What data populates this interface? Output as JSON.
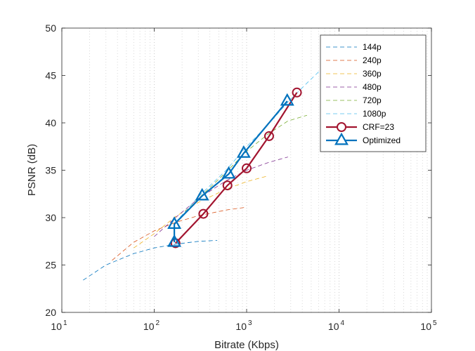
{
  "chart_data": {
    "type": "line",
    "xlabel": "Bitrate (Kbps)",
    "ylabel": "PSNR (dB)",
    "x_scale": "log",
    "xlim": [
      10,
      100000
    ],
    "ylim": [
      20,
      50
    ],
    "x_ticks": [
      {
        "value": 10,
        "base": "10",
        "exp": "1"
      },
      {
        "value": 100,
        "base": "10",
        "exp": "2"
      },
      {
        "value": 1000,
        "base": "10",
        "exp": "3"
      },
      {
        "value": 10000,
        "base": "10",
        "exp": "4"
      },
      {
        "value": 100000,
        "base": "10",
        "exp": "5"
      }
    ],
    "y_ticks": [
      "20",
      "25",
      "30",
      "35",
      "40",
      "45",
      "50"
    ],
    "grid": "x-minor-dotted",
    "legend_position": "top-right",
    "series": [
      {
        "name": "144p",
        "style": "dashed",
        "color": "#0072BD",
        "x": [
          17,
          30,
          60,
          100,
          170,
          300,
          480
        ],
        "y": [
          23.4,
          25.0,
          26.2,
          26.8,
          27.2,
          27.5,
          27.6
        ]
      },
      {
        "name": "240p",
        "style": "dashed",
        "color": "#D95319",
        "x": [
          35,
          60,
          100,
          170,
          300,
          600,
          1000
        ],
        "y": [
          25.5,
          27.4,
          28.6,
          29.5,
          30.2,
          30.8,
          31.1
        ]
      },
      {
        "name": "360p",
        "style": "dashed",
        "color": "#EDB120",
        "x": [
          60,
          100,
          170,
          300,
          600,
          1000,
          1700
        ],
        "y": [
          26.8,
          28.3,
          30.1,
          31.6,
          33.0,
          33.8,
          34.4
        ]
      },
      {
        "name": "480p",
        "style": "dashed",
        "color": "#7E2F8E",
        "x": [
          100,
          170,
          300,
          600,
          1000,
          1700,
          2800
        ],
        "y": [
          28.0,
          30.0,
          32.0,
          33.9,
          35.0,
          35.8,
          36.4
        ]
      },
      {
        "name": "720p",
        "style": "dashed",
        "color": "#77AC30",
        "x": [
          170,
          300,
          600,
          1000,
          1700,
          2800,
          4500
        ],
        "y": [
          29.5,
          32.0,
          34.8,
          37.0,
          38.8,
          40.2,
          40.8
        ]
      },
      {
        "name": "1080p",
        "style": "dashed",
        "color": "#4DBEEE",
        "x": [
          170,
          300,
          600,
          1000,
          1700,
          2800,
          4500,
          7000
        ],
        "y": [
          29.5,
          32.2,
          35.0,
          37.5,
          39.8,
          42.2,
          44.2,
          46.0
        ]
      },
      {
        "name": "CRF=23",
        "style": "solid-marker-circle",
        "color": "#A2142F",
        "x": [
          170,
          340,
          620,
          1000,
          1750,
          3500
        ],
        "y": [
          27.3,
          30.4,
          33.4,
          35.2,
          38.6,
          43.2
        ]
      },
      {
        "name": "Optimized",
        "style": "solid-marker-triangle",
        "color": "#0072BD",
        "x": [
          165,
          165,
          330,
          640,
          930,
          2750
        ],
        "y": [
          27.4,
          29.3,
          32.3,
          34.6,
          36.8,
          42.3
        ]
      }
    ]
  }
}
